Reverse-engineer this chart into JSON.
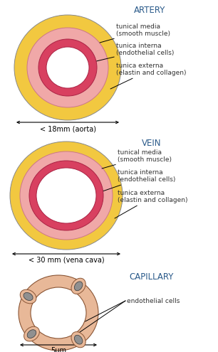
{
  "bg_color": "#ffffff",
  "text_color": "#2a5a8a",
  "label_color": "#333333",
  "title_artery": "ARTERY",
  "title_vein": "VEIN",
  "title_capillary": "CAPILLARY",
  "artery_label1": "tunical media\n(smooth muscle)",
  "artery_label2": "tunica interna\n(endothelial cells)",
  "artery_label3": "tunica externa\n(elastin and collagen)",
  "vein_label1": "tunical media\n(smooth muscle)",
  "vein_label2": "tunica interna\n(endothelial cells)",
  "vein_label3": "tunica externa\n(elastin and collagen)",
  "cap_label": "endothelial cells",
  "artery_size": "< 18mm (aorta)",
  "vein_size": "< 30 mm (vena cava)",
  "cap_size": "5μm",
  "color_externa": "#f2c840",
  "color_media": "#f0a8a8",
  "color_interna": "#d84060",
  "color_cap_outer": "#e8b898",
  "color_cap_nucleus": "#909090",
  "line_color": "#333333",
  "edge_color": "#888888"
}
